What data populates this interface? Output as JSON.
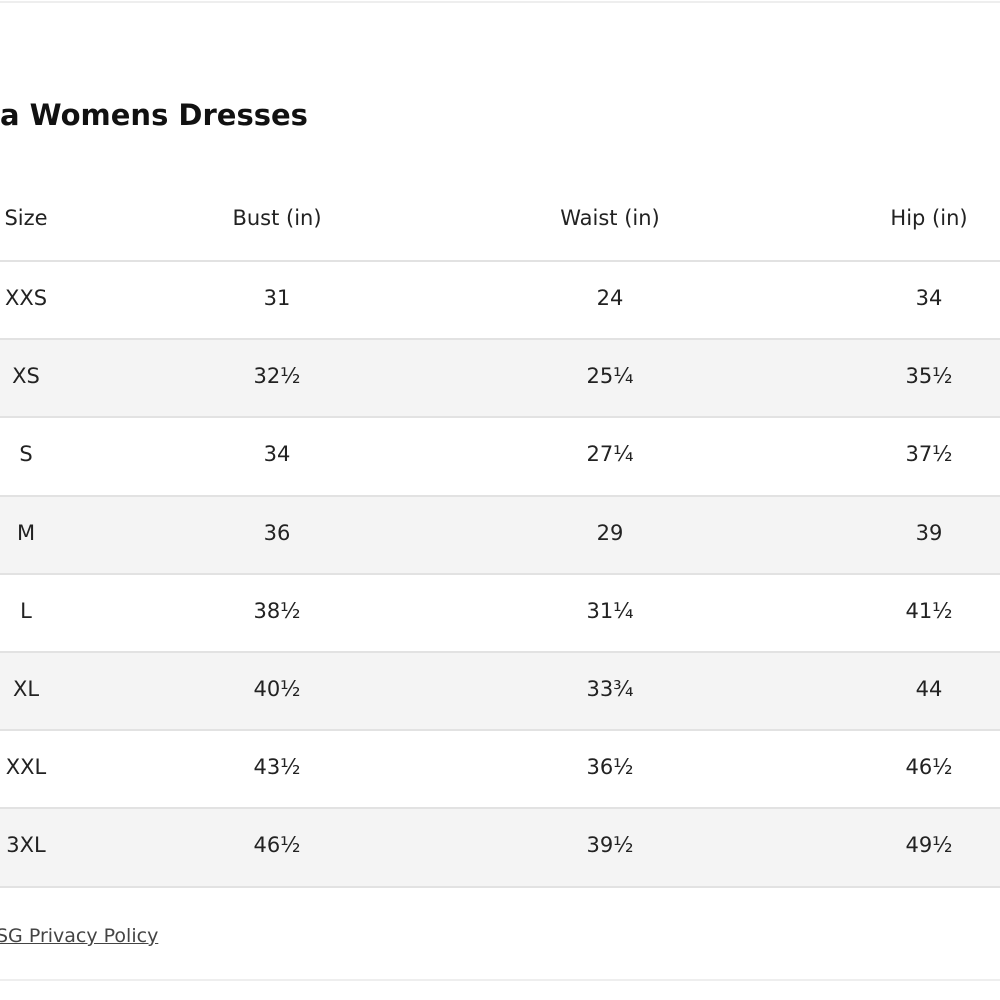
{
  "header": {
    "title": "a Womens Dresses"
  },
  "table": {
    "columns": [
      "Size",
      "Bust (in)",
      "Waist (in)",
      "Hip (in)"
    ],
    "rows": [
      [
        "XXS",
        "31",
        "24",
        "34"
      ],
      [
        "XS",
        "32½",
        "25¼",
        "35½"
      ],
      [
        "S",
        "34",
        "27¼",
        "37½"
      ],
      [
        "M",
        "36",
        "29",
        "39"
      ],
      [
        "L",
        "38½",
        "31¼",
        "41½"
      ],
      [
        "XL",
        "40½",
        "33¾",
        "44"
      ],
      [
        "XXL",
        "43½",
        "36½",
        "46½"
      ],
      [
        "3XL",
        "46½",
        "39½",
        "49½"
      ]
    ]
  },
  "footer": {
    "link": "SG Privacy Policy"
  }
}
